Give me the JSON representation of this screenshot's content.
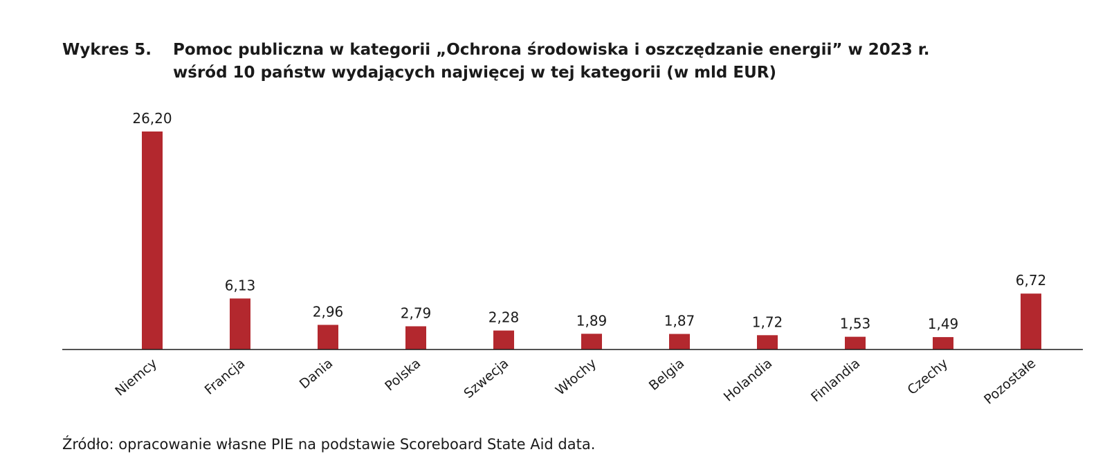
{
  "figure": {
    "label": "Wykres 5.",
    "title_line1": "Pomoc publiczna w kategorii „Ochrona środowiska i oszczędzanie energii” w 2023 r.",
    "title_line2": "wśród 10 państw wydających najwięcej w tej kategorii (w mld EUR)",
    "source": "Źródło: opracowanie własne PIE na podstawie Scoreboard State Aid data."
  },
  "chart_data": {
    "type": "bar",
    "title": "Pomoc publiczna w kategorii „Ochrona środowiska i oszczędzanie energii” w 2023 r. wśród 10 państw wydających najwięcej w tej kategorii (w mld EUR)",
    "categories": [
      "Niemcy",
      "Francja",
      "Dania",
      "Polska",
      "Szwecja",
      "Włochy",
      "Belgia",
      "Holandia",
      "Finlandia",
      "Czechy",
      "Pozostałe"
    ],
    "values": [
      26.2,
      6.13,
      2.96,
      2.79,
      2.28,
      1.89,
      1.87,
      1.72,
      1.53,
      1.49,
      6.72
    ],
    "value_labels": [
      "26,20",
      "6,13",
      "2,96",
      "2,79",
      "2,28",
      "1,89",
      "1,87",
      "1,72",
      "1,53",
      "1,49",
      "6,72"
    ],
    "xlabel": "",
    "ylabel": "",
    "ylim": [
      0,
      26.2
    ],
    "grid": false,
    "legend": "none",
    "bar_color": "#b3282e",
    "axis_color": "#1a1a1a"
  }
}
